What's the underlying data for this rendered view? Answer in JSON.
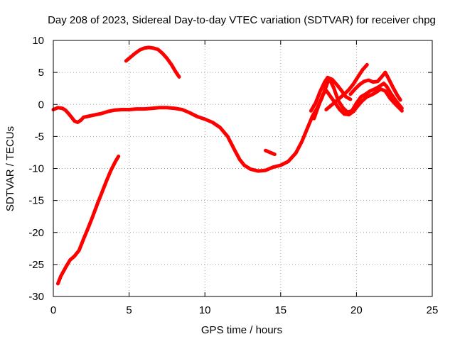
{
  "chart_data": {
    "type": "scatter",
    "title": "Day 208 of 2023, Sidereal Day-to-day VTEC variation (SDTVAR) for receiver chpg",
    "xlabel": "GPS time / hours",
    "ylabel": "SDTVAR / TECUs",
    "xlim": [
      0,
      25
    ],
    "ylim": [
      -30,
      10
    ],
    "x_ticks": [
      0,
      5,
      10,
      15,
      20,
      25
    ],
    "y_ticks": [
      -30,
      -25,
      -20,
      -15,
      -10,
      -5,
      0,
      5,
      10
    ],
    "grid": true,
    "legend": "none",
    "colors": {
      "series": "#ff0000",
      "grid": "#a0a0a0",
      "axis": "#000000"
    },
    "series": [
      {
        "name": "trace-main",
        "points": [
          [
            0.0,
            -0.8
          ],
          [
            0.3,
            -0.5
          ],
          [
            0.6,
            -0.6
          ],
          [
            0.8,
            -0.9
          ],
          [
            1.0,
            -1.4
          ],
          [
            1.2,
            -2.0
          ],
          [
            1.4,
            -2.6
          ],
          [
            1.6,
            -2.8
          ],
          [
            1.8,
            -2.5
          ],
          [
            2.0,
            -2.0
          ],
          [
            2.4,
            -1.8
          ],
          [
            2.8,
            -1.6
          ],
          [
            3.2,
            -1.4
          ],
          [
            3.6,
            -1.1
          ],
          [
            4.0,
            -0.9
          ],
          [
            4.5,
            -0.8
          ],
          [
            5.0,
            -0.8
          ],
          [
            5.5,
            -0.7
          ],
          [
            6.0,
            -0.7
          ],
          [
            6.5,
            -0.6
          ],
          [
            7.0,
            -0.5
          ],
          [
            7.5,
            -0.5
          ],
          [
            8.0,
            -0.6
          ],
          [
            8.5,
            -0.8
          ],
          [
            9.0,
            -1.3
          ],
          [
            9.5,
            -1.9
          ],
          [
            10.0,
            -2.3
          ],
          [
            10.5,
            -2.8
          ],
          [
            11.0,
            -3.6
          ],
          [
            11.5,
            -5.0
          ],
          [
            12.0,
            -7.3
          ],
          [
            12.3,
            -8.6
          ],
          [
            12.6,
            -9.5
          ],
          [
            13.0,
            -10.1
          ],
          [
            13.5,
            -10.4
          ],
          [
            14.0,
            -10.3
          ],
          [
            14.5,
            -9.8
          ],
          [
            15.0,
            -9.5
          ],
          [
            15.5,
            -8.9
          ],
          [
            16.0,
            -7.6
          ],
          [
            16.4,
            -5.8
          ],
          [
            16.8,
            -3.5
          ],
          [
            17.1,
            -1.8
          ],
          [
            17.4,
            -0.6
          ],
          [
            17.7,
            0.9
          ],
          [
            18.0,
            2.8
          ],
          [
            18.2,
            4.1
          ],
          [
            18.5,
            2.6
          ],
          [
            18.8,
            0.6
          ],
          [
            19.1,
            -0.5
          ],
          [
            19.4,
            -1.2
          ],
          [
            19.7,
            -1.0
          ],
          [
            20.0,
            0.2
          ],
          [
            20.3,
            1.2
          ],
          [
            20.6,
            1.6
          ],
          [
            20.9,
            2.1
          ],
          [
            21.2,
            2.4
          ],
          [
            21.5,
            2.8
          ],
          [
            21.8,
            3.3
          ],
          [
            22.0,
            2.8
          ],
          [
            22.3,
            1.6
          ],
          [
            22.6,
            0.6
          ],
          [
            23.0,
            -0.6
          ]
        ]
      },
      {
        "name": "trace-upper-arc",
        "points": [
          [
            4.8,
            6.8
          ],
          [
            5.1,
            7.4
          ],
          [
            5.4,
            8.0
          ],
          [
            5.7,
            8.5
          ],
          [
            6.0,
            8.8
          ],
          [
            6.3,
            8.9
          ],
          [
            6.6,
            8.8
          ],
          [
            6.9,
            8.6
          ],
          [
            7.2,
            8.0
          ],
          [
            7.5,
            7.2
          ],
          [
            7.8,
            6.2
          ],
          [
            8.1,
            5.0
          ],
          [
            8.3,
            4.3
          ]
        ]
      },
      {
        "name": "trace-rising-left",
        "points": [
          [
            0.3,
            -28.0
          ],
          [
            0.5,
            -26.8
          ],
          [
            0.8,
            -25.5
          ],
          [
            1.1,
            -24.3
          ],
          [
            1.4,
            -23.7
          ],
          [
            1.7,
            -22.8
          ],
          [
            2.0,
            -21.0
          ],
          [
            2.3,
            -19.3
          ],
          [
            2.6,
            -17.5
          ],
          [
            2.9,
            -15.6
          ],
          [
            3.2,
            -13.8
          ],
          [
            3.5,
            -12.0
          ],
          [
            3.8,
            -10.3
          ],
          [
            4.1,
            -8.9
          ],
          [
            4.3,
            -8.1
          ]
        ]
      },
      {
        "name": "trace-evening-loop-a",
        "points": [
          [
            17.0,
            -1.0
          ],
          [
            17.3,
            0.2
          ],
          [
            17.6,
            2.0
          ],
          [
            17.9,
            3.5
          ],
          [
            18.1,
            4.2
          ],
          [
            18.4,
            3.9
          ],
          [
            18.7,
            3.1
          ],
          [
            19.0,
            2.2
          ],
          [
            19.3,
            1.2
          ],
          [
            19.6,
            0.8
          ]
        ]
      },
      {
        "name": "trace-evening-loop-b",
        "points": [
          [
            18.0,
            -0.8
          ],
          [
            18.3,
            -0.2
          ],
          [
            18.6,
            0.4
          ],
          [
            18.9,
            1.0
          ],
          [
            19.2,
            1.6
          ],
          [
            19.5,
            2.3
          ],
          [
            19.8,
            3.2
          ],
          [
            20.1,
            4.3
          ],
          [
            20.4,
            5.4
          ],
          [
            20.7,
            6.2
          ]
        ]
      },
      {
        "name": "trace-evening-loop-c",
        "points": [
          [
            19.6,
            1.6
          ],
          [
            19.9,
            2.4
          ],
          [
            20.2,
            3.1
          ],
          [
            20.5,
            3.6
          ],
          [
            20.8,
            3.8
          ],
          [
            21.1,
            3.5
          ],
          [
            21.4,
            3.6
          ],
          [
            21.7,
            4.4
          ],
          [
            21.9,
            5.0
          ],
          [
            22.1,
            4.1
          ],
          [
            22.4,
            2.7
          ],
          [
            22.7,
            1.4
          ],
          [
            22.9,
            0.7
          ]
        ]
      },
      {
        "name": "trace-evening-band",
        "points": [
          [
            17.2,
            -2.2
          ],
          [
            17.5,
            -0.2
          ],
          [
            17.8,
            1.6
          ],
          [
            18.0,
            2.2
          ],
          [
            18.3,
            1.2
          ],
          [
            18.6,
            0.2
          ],
          [
            18.9,
            -0.8
          ],
          [
            19.2,
            -1.5
          ],
          [
            19.5,
            -1.6
          ],
          [
            19.8,
            -1.1
          ],
          [
            20.1,
            -0.2
          ],
          [
            20.4,
            0.6
          ],
          [
            20.7,
            1.2
          ],
          [
            21.0,
            1.5
          ],
          [
            21.3,
            1.9
          ],
          [
            21.6,
            2.4
          ],
          [
            21.9,
            2.1
          ],
          [
            22.2,
            1.0
          ],
          [
            22.5,
            0.2
          ],
          [
            22.8,
            -0.5
          ],
          [
            23.0,
            -1.0
          ]
        ]
      },
      {
        "name": "trace-afternoon-spur",
        "points": [
          [
            14.0,
            -7.2
          ],
          [
            14.3,
            -7.5
          ],
          [
            14.6,
            -7.8
          ]
        ]
      }
    ]
  }
}
